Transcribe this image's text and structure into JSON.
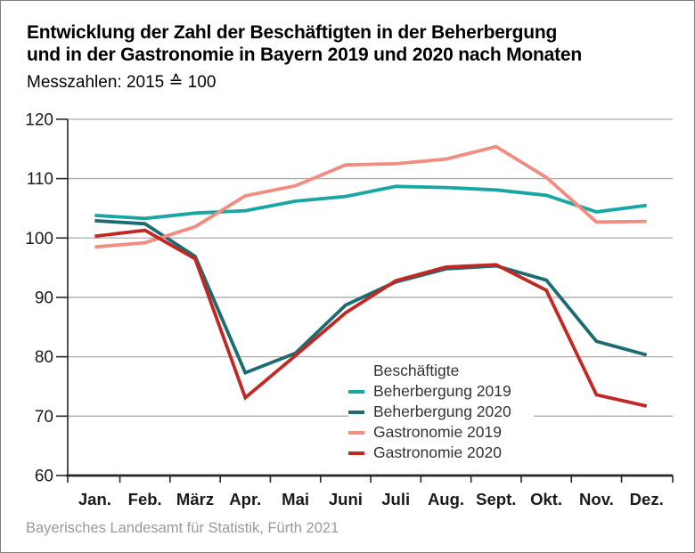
{
  "header": {
    "title_line1": "Entwicklung der Zahl der Beschäftigten in der Beherbergung",
    "title_line2": "und in der Gastronomie in Bayern 2019 und 2020 nach Monaten",
    "subtitle": "Messzahlen: 2015 ≙ 100"
  },
  "footer": {
    "source": "Bayerisches Landesamt für Statistik, Fürth 2021"
  },
  "chart_data": {
    "type": "line",
    "legend_title": "Beschäftigte",
    "legend_position": "inside-bottom-right",
    "categories": [
      "Jan.",
      "Feb.",
      "März",
      "Apr.",
      "Mai",
      "Juni",
      "Juli",
      "Aug.",
      "Sept.",
      "Okt.",
      "Nov.",
      "Dez."
    ],
    "series": [
      {
        "name": "Beherbergung 2019",
        "color": "#17A6A3",
        "values": [
          103.8,
          103.3,
          104.2,
          104.6,
          106.2,
          107.0,
          108.7,
          108.5,
          108.1,
          107.2,
          104.4,
          105.5
        ]
      },
      {
        "name": "Beherbergung 2020",
        "color": "#1C6B70",
        "values": [
          102.9,
          102.4,
          96.9,
          77.3,
          80.6,
          88.7,
          92.6,
          94.8,
          95.3,
          92.9,
          82.6,
          80.3
        ]
      },
      {
        "name": "Gastronomie 2019",
        "color": "#F28B80",
        "values": [
          98.5,
          99.2,
          101.9,
          107.1,
          108.8,
          112.3,
          112.5,
          113.3,
          115.4,
          110.2,
          102.7,
          102.8
        ]
      },
      {
        "name": "Gastronomie 2020",
        "color": "#C22823",
        "values": [
          100.3,
          101.3,
          96.5,
          73.1,
          80.2,
          87.4,
          92.8,
          95.1,
          95.5,
          91.2,
          73.6,
          71.7
        ]
      }
    ],
    "ylim": [
      60,
      120
    ],
    "ytick_step": 10,
    "grid": true,
    "colors": {
      "grid": "#ABABAB",
      "axis": "#262626",
      "tick_label": "#1A1A1A"
    }
  }
}
